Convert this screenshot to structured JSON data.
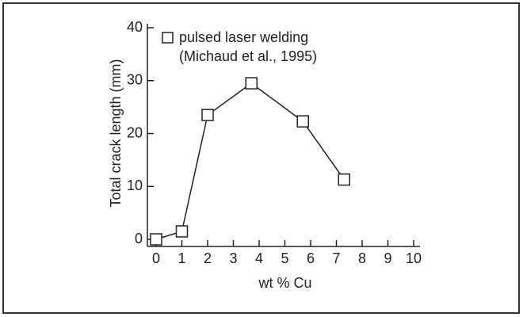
{
  "chart_data": {
    "type": "line",
    "x_label": "wt % Cu",
    "y_label": "Total crack length (mm)",
    "legend_note": "(Michaud et al., 1995)",
    "x": [
      0,
      1,
      2,
      3.7,
      5.7,
      7.3
    ],
    "series": [
      {
        "name": "pulsed laser welding",
        "color": "#222222",
        "values": [
          0,
          1.5,
          23.5,
          29.5,
          22.3,
          11.3
        ]
      }
    ],
    "xlim": [
      0,
      10
    ],
    "xticks": [
      0,
      1,
      2,
      3,
      4,
      5,
      6,
      7,
      8,
      9,
      10
    ],
    "ylim": [
      0,
      40
    ],
    "yticks": [
      0,
      10,
      20,
      30,
      40
    ],
    "marker": "square",
    "grid": false
  }
}
